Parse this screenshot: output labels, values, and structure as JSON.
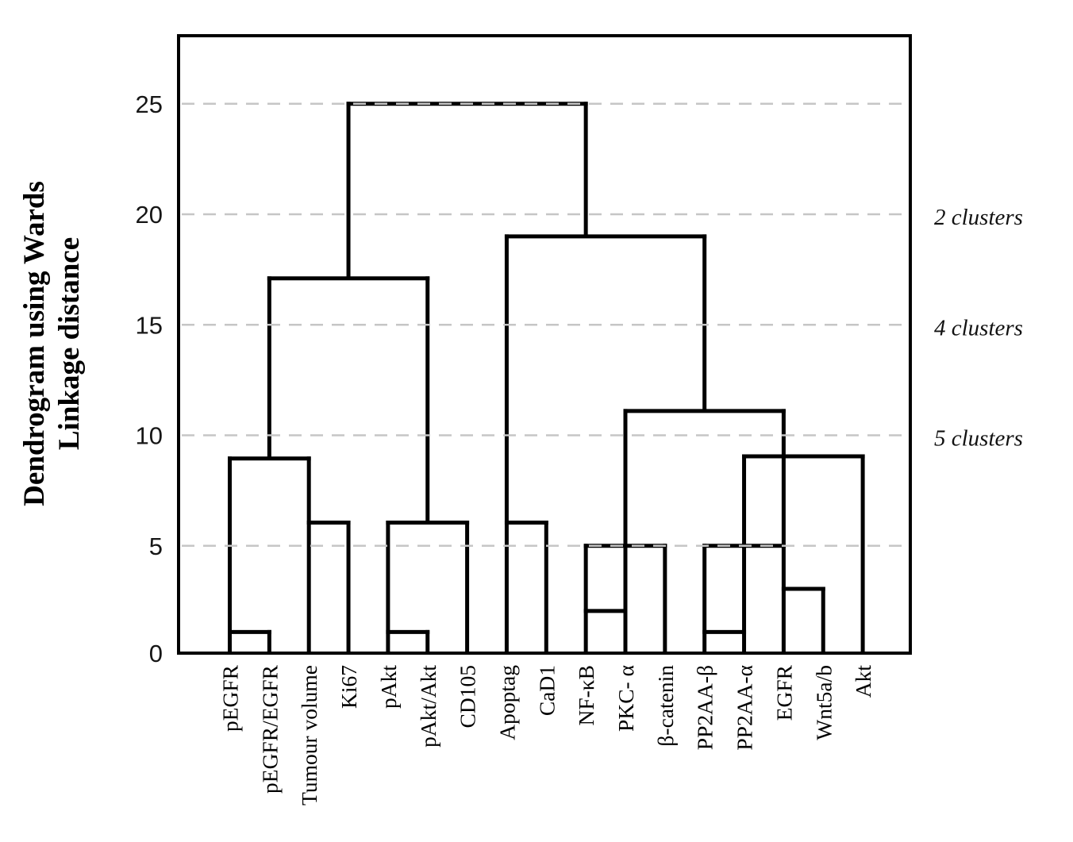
{
  "colors": {
    "line": "#000000",
    "grid": "#c6c6c6",
    "background": "#ffffff",
    "text": "#161616"
  },
  "y_axis": {
    "title_line1": "Dendrogram using Wards",
    "title_line2": "Linkage distance",
    "tick_labels": [
      "25",
      "20",
      "15",
      "10",
      "5",
      "0"
    ],
    "tick_values": [
      25,
      20,
      15,
      10,
      5,
      0
    ]
  },
  "annotations": [
    {
      "text": "2 clusters",
      "at_height": 20
    },
    {
      "text": "4 clusters",
      "at_height": 15
    },
    {
      "text": "5 clusters",
      "at_height": 10
    }
  ],
  "chart_data": {
    "type": "dendrogram",
    "title": "",
    "ylabel": "Dendrogram using Wards Linkage distance",
    "ylim": [
      0,
      28
    ],
    "yticks": [
      0,
      5,
      10,
      15,
      20,
      25
    ],
    "grid": "horizontal dashed at 5,10,15,20,25",
    "legend_position": "none",
    "categories": [
      "pEGFR",
      "pEGFR/EGFR",
      "Tumour volume",
      "Ki67",
      "pAkt",
      "pAkt/Akt",
      "CD105",
      "Apoptag",
      "CaD1",
      "NF-κB",
      "PKC- α",
      "β-catenin",
      "PP2AA-β",
      "PP2AA-α",
      "EGFR",
      "Wnt5a/b",
      "Akt"
    ],
    "merges": [
      {
        "a": "pEGFR",
        "b": "pEGFR/EGFR",
        "height": 1
      },
      {
        "a": "pAkt",
        "b": "pAkt/Akt",
        "height": 1
      },
      {
        "a": "PP2AA-β",
        "b": "PP2AA-α",
        "height": 1
      },
      {
        "a": "NF-κB",
        "b": "PKC-α",
        "height": 2
      },
      {
        "a": "EGFR",
        "b": "Wnt5a/b",
        "height": 3
      },
      {
        "a": "[NF-κB, PKC-α]",
        "b": "β-catenin",
        "height": 5
      },
      {
        "a": "[PP2AA-β, PP2AA-α]",
        "b": "[EGFR, Wnt5a/b]",
        "height": 5
      },
      {
        "a": "Tumour volume",
        "b": "Ki67",
        "height": 6
      },
      {
        "a": "[pAkt, pAkt/Akt]",
        "b": "CD105",
        "height": 6
      },
      {
        "a": "Apoptag",
        "b": "CaD1",
        "height": 6
      },
      {
        "a": "[pEGFR, pEGFR/EGFR]",
        "b": "[Tumour volume, Ki67]",
        "height": 9
      },
      {
        "a": "[PP2AA-β, PP2AA-α, EGFR, Wnt5a/b]",
        "b": "Akt",
        "height": 9
      },
      {
        "a": "[NF-κB, PKC-α, β-catenin]",
        "b": "[PP2AA-β, PP2AA-α, EGFR, Wnt5a/b, Akt]",
        "height": 11
      },
      {
        "a": "[pEGFR, pEGFR/EGFR, Tumour volume, Ki67]",
        "b": "[pAkt, pAkt/Akt, CD105]",
        "height": 17
      },
      {
        "a": "[Apoptag, CaD1]",
        "b": "[NF-κB ... Akt]",
        "height": 19
      },
      {
        "a": "left cluster [pEGFR ... CD105]",
        "b": "right cluster [Apoptag ... Akt]",
        "height": 25
      }
    ],
    "links": [
      {
        "u1": 0,
        "u2": 1,
        "h": 1.1
      },
      {
        "u1": 0,
        "u2": 2,
        "h": 8.95
      },
      {
        "u1": 2,
        "u2": 3,
        "h": 6.05
      },
      {
        "u1": 1,
        "u2": 5,
        "h": 17.1
      },
      {
        "u1": 4,
        "u2": 5,
        "h": 1.1
      },
      {
        "u1": 4,
        "u2": 6,
        "h": 6.05
      },
      {
        "u1": 3,
        "u2": 9,
        "h": 25.0
      },
      {
        "u1": 7,
        "u2": 8,
        "h": 6.05
      },
      {
        "u1": 7,
        "u2": 12,
        "h": 19.0
      },
      {
        "u1": 9,
        "u2": 10,
        "h": 2.05
      },
      {
        "u1": 9,
        "u2": 11,
        "h": 5.0
      },
      {
        "u1": 10,
        "u2": 14,
        "h": 11.1
      },
      {
        "u1": 12,
        "u2": 13,
        "h": 1.1
      },
      {
        "u1": 12,
        "u2": 14,
        "h": 5.0
      },
      {
        "u1": 14,
        "u2": 15,
        "h": 3.05
      },
      {
        "u1": 13,
        "u2": 16,
        "h": 9.05
      }
    ],
    "connectors": [
      {
        "u": 0,
        "h1": 0,
        "h2": 8.95
      },
      {
        "u": 1,
        "h1": 0,
        "h2": 1.1
      },
      {
        "u": 2,
        "h1": 0,
        "h2": 8.95
      },
      {
        "u": 3,
        "h1": 0,
        "h2": 6.05
      },
      {
        "u": 4,
        "h1": 0,
        "h2": 6.05
      },
      {
        "u": 5,
        "h1": 0,
        "h2": 1.1
      },
      {
        "u": 6,
        "h1": 0,
        "h2": 6.05
      },
      {
        "u": 7,
        "h1": 0,
        "h2": 19.0
      },
      {
        "u": 8,
        "h1": 0,
        "h2": 6.05
      },
      {
        "u": 9,
        "h1": 0,
        "h2": 5.0
      },
      {
        "u": 10,
        "h1": 0,
        "h2": 11.1
      },
      {
        "u": 11,
        "h1": 0,
        "h2": 5.0
      },
      {
        "u": 12,
        "h1": 0,
        "h2": 5.0
      },
      {
        "u": 13,
        "h1": 0,
        "h2": 9.05
      },
      {
        "u": 14,
        "h1": 0,
        "h2": 11.1
      },
      {
        "u": 15,
        "h1": 0,
        "h2": 3.05
      },
      {
        "u": 16,
        "h1": 0,
        "h2": 9.05
      },
      {
        "u": 1,
        "h1": 8.95,
        "h2": 17.1
      },
      {
        "u": 5,
        "h1": 6.05,
        "h2": 17.1
      },
      {
        "u": 3,
        "h1": 17.1,
        "h2": 25.0
      },
      {
        "u": 9,
        "h1": 19.0,
        "h2": 25.0
      },
      {
        "u": 12,
        "h1": 11.1,
        "h2": 19.0
      }
    ]
  }
}
